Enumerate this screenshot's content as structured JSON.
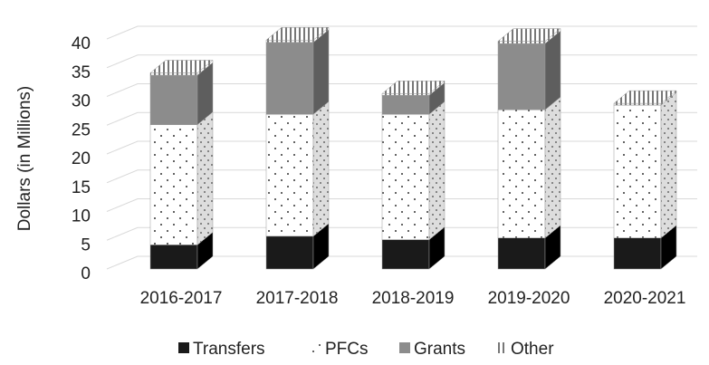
{
  "chart_data": {
    "type": "bar3d_stacked",
    "y_label": "Dollars (in Millions)",
    "categories": [
      "2016-2017",
      "2017-2018",
      "2018-2019",
      "2019-2020",
      "2020-2021"
    ],
    "series": [
      {
        "name": "Transfers",
        "color": "#1a1a1a",
        "values": [
          4.2,
          5.7,
          5.1,
          5.4,
          5.4
        ]
      },
      {
        "name": "PFCs",
        "color": "#ffffff",
        "values": [
          20.9,
          21.2,
          21.8,
          22.3,
          23.1
        ]
      },
      {
        "name": "Grants",
        "color": "#8c8c8c",
        "values": [
          8.6,
          12.5,
          3.3,
          11.5,
          0
        ]
      },
      {
        "name": "Other",
        "color": "#ffffff",
        "values": [
          0.4,
          0.4,
          0.3,
          0.4,
          0.3
        ]
      }
    ],
    "ylim": [
      0,
      40
    ],
    "yticks": [
      0,
      5,
      10,
      15,
      20,
      25,
      30,
      35,
      40
    ],
    "grid": true
  }
}
